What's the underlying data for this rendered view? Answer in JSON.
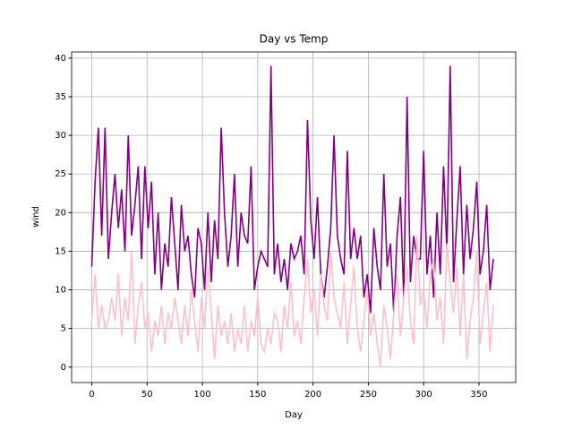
{
  "chart_data": {
    "type": "line",
    "title": "Day vs Temp",
    "x_label": "Day",
    "y_label": "wind",
    "x": [
      0,
      3,
      6,
      9,
      12,
      15,
      18,
      21,
      24,
      27,
      30,
      33,
      36,
      39,
      42,
      45,
      48,
      51,
      54,
      57,
      60,
      63,
      66,
      69,
      72,
      75,
      78,
      81,
      84,
      87,
      90,
      93,
      96,
      99,
      102,
      105,
      108,
      111,
      114,
      117,
      120,
      123,
      126,
      129,
      132,
      135,
      138,
      141,
      144,
      147,
      150,
      153,
      156,
      159,
      162,
      165,
      168,
      171,
      174,
      177,
      180,
      183,
      186,
      189,
      192,
      195,
      198,
      201,
      204,
      207,
      210,
      213,
      216,
      219,
      222,
      225,
      228,
      231,
      234,
      237,
      240,
      243,
      246,
      249,
      252,
      255,
      258,
      261,
      264,
      267,
      270,
      273,
      276,
      279,
      282,
      285,
      288,
      291,
      294,
      297,
      300,
      303,
      306,
      309,
      312,
      315,
      318,
      321,
      324,
      327,
      330,
      333,
      336,
      339,
      342,
      345,
      348,
      351,
      354,
      357,
      360,
      363
    ],
    "series": [
      {
        "color": "#800080",
        "values": [
          13,
          24,
          31,
          17,
          31,
          14,
          20,
          25,
          18,
          23,
          15,
          30,
          17,
          21,
          26,
          14,
          26,
          18,
          24,
          12,
          20,
          10,
          16,
          13,
          22,
          16,
          10,
          21,
          15,
          17,
          12,
          9,
          18,
          16,
          10,
          20,
          11,
          19,
          14,
          31,
          20,
          13,
          17,
          25,
          13,
          20,
          17,
          16,
          26,
          10,
          13,
          15,
          14,
          13,
          39,
          12,
          16,
          11,
          14,
          10,
          16,
          14,
          15,
          17,
          12,
          32,
          19,
          14,
          22,
          12,
          9,
          13,
          18,
          30,
          17,
          14,
          12,
          28,
          14,
          18,
          14,
          17,
          9,
          12,
          7,
          18,
          13,
          10,
          25,
          13,
          16,
          7,
          17,
          22,
          9,
          35,
          11,
          17,
          14,
          14,
          28,
          12,
          17,
          9,
          20,
          12,
          26,
          15,
          39,
          11,
          19,
          26,
          12,
          21,
          14,
          18,
          24,
          12,
          15,
          21,
          10,
          14
        ]
      },
      {
        "color": "#ffc0cb",
        "values": [
          6,
          12,
          5,
          8,
          5,
          6,
          9,
          6,
          12,
          4,
          9,
          6,
          15,
          3,
          8,
          11,
          5,
          7,
          2,
          6,
          4,
          8,
          3,
          7,
          5,
          9,
          6,
          3,
          8,
          4,
          10,
          6,
          2,
          9,
          5,
          13,
          7,
          1,
          8,
          4,
          6,
          3,
          7,
          2,
          5,
          3,
          8,
          2,
          6,
          4,
          9,
          3,
          2,
          5,
          3,
          7,
          6,
          2,
          8,
          5,
          11,
          4,
          6,
          3,
          9,
          14,
          7,
          10,
          4,
          12,
          8,
          6,
          15,
          9,
          7,
          5,
          11,
          3,
          8,
          13,
          5,
          2,
          6,
          10,
          4,
          7,
          3,
          0,
          8,
          5,
          1,
          7,
          12,
          4,
          9,
          13,
          6,
          3,
          17,
          8,
          10,
          5,
          12,
          14,
          6,
          9,
          3,
          16,
          11,
          7,
          13,
          4,
          12,
          1,
          6,
          9,
          15,
          3,
          7,
          11,
          2,
          8
        ]
      }
    ],
    "xlim": [
      -18.2,
      383.2
    ],
    "ylim": [
      -2,
      40.8
    ],
    "xticks": [
      0,
      50,
      100,
      150,
      200,
      250,
      300,
      350
    ],
    "yticks": [
      0,
      5,
      10,
      15,
      20,
      25,
      30,
      35,
      40
    ],
    "grid": true
  }
}
